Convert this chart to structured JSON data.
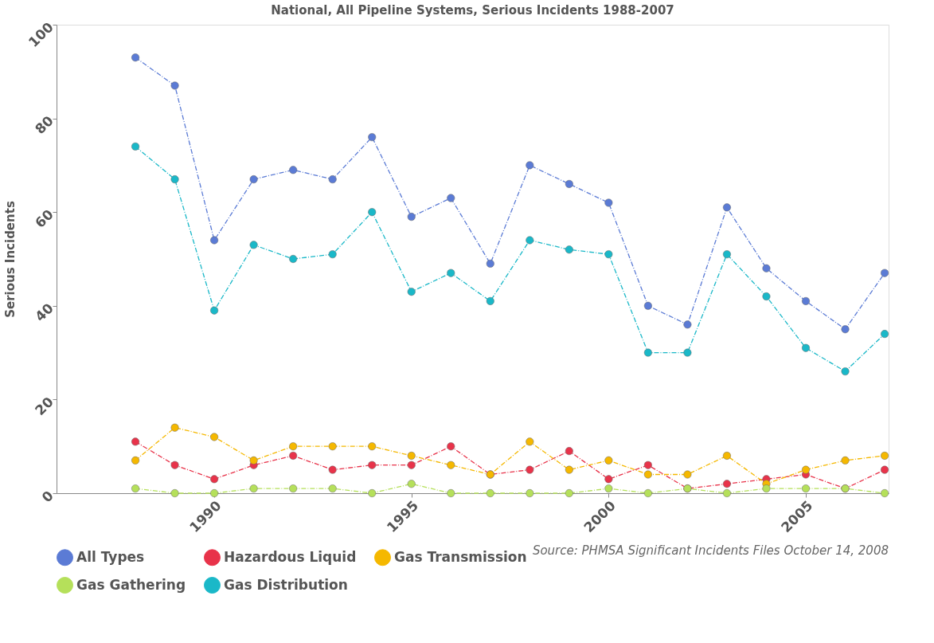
{
  "chart_data": {
    "type": "line",
    "title": "National, All Pipeline Systems, Serious Incidents 1988-2007",
    "ylabel": "Serious Incidents",
    "x": [
      1988,
      1989,
      1990,
      1991,
      1992,
      1993,
      1994,
      1995,
      1996,
      1997,
      1998,
      1999,
      2000,
      2001,
      2002,
      2003,
      2004,
      2005,
      2006,
      2007
    ],
    "series": [
      {
        "name": "All Types",
        "color": "#5b7bd5",
        "values": [
          93,
          87,
          54,
          67,
          69,
          67,
          76,
          59,
          63,
          49,
          70,
          66,
          62,
          40,
          36,
          61,
          48,
          41,
          35,
          47
        ]
      },
      {
        "name": "Hazardous Liquid",
        "color": "#e8334a",
        "values": [
          11,
          6,
          3,
          6,
          8,
          5,
          6,
          6,
          10,
          4,
          5,
          9,
          3,
          6,
          1,
          2,
          3,
          4,
          1,
          5
        ]
      },
      {
        "name": "Gas Transmission",
        "color": "#f5b800",
        "values": [
          7,
          14,
          12,
          7,
          10,
          10,
          10,
          8,
          6,
          4,
          11,
          5,
          7,
          4,
          4,
          8,
          2,
          5,
          7,
          8
        ]
      },
      {
        "name": "Gas Gathering",
        "color": "#b5e05a",
        "values": [
          1,
          0,
          0,
          1,
          1,
          1,
          0,
          2,
          0,
          0,
          0,
          0,
          1,
          0,
          1,
          0,
          1,
          1,
          1,
          0
        ]
      },
      {
        "name": "Gas Distribution",
        "color": "#1ab8c8",
        "values": [
          74,
          67,
          39,
          53,
          50,
          51,
          60,
          43,
          47,
          41,
          54,
          52,
          51,
          30,
          30,
          51,
          42,
          31,
          26,
          34
        ]
      }
    ],
    "xlim": [
      1986,
      2007.1
    ],
    "xticks": [
      1990,
      1995,
      2000,
      2005
    ],
    "ylim": [
      0,
      100
    ],
    "yticks": [
      0,
      20,
      40,
      60,
      80,
      100
    ],
    "grid": false,
    "legend": "bottom",
    "marker": "circle",
    "line_style": "dashed",
    "annotations": [
      "Source: PHMSA Significant Incidents Files October 14, 2008"
    ]
  }
}
